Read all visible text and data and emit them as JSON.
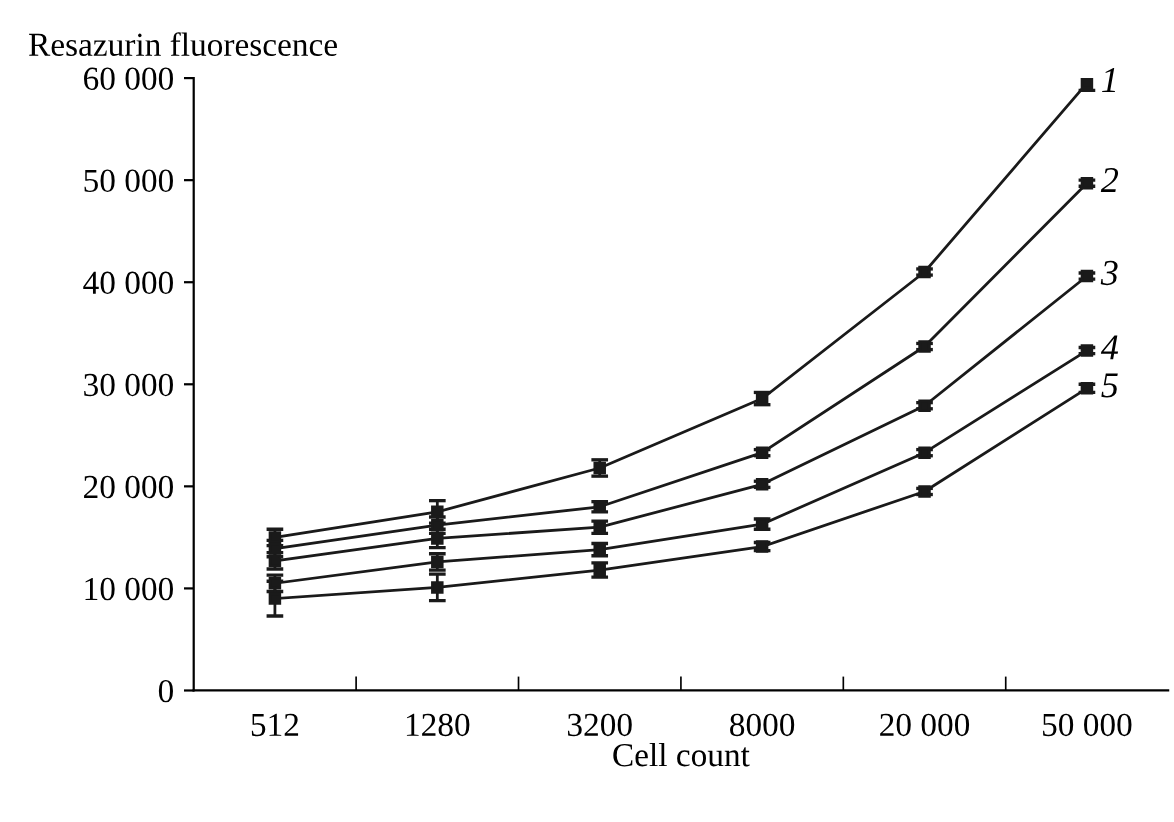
{
  "chart_data": {
    "type": "line",
    "xlabel": "Cell count",
    "ylabel": "Resazurin fluorescence",
    "categories": [
      "512",
      "1280",
      "3200",
      "8000",
      "20 000",
      "50 000"
    ],
    "ylim": [
      0,
      60000
    ],
    "yticks": [
      0,
      {
        "value": 10000,
        "label": "10 000"
      },
      {
        "value": 20000,
        "label": "20 000"
      },
      {
        "value": 30000,
        "label": "30 000"
      },
      {
        "value": 40000,
        "label": "40 000"
      },
      {
        "value": 50000,
        "label": "50 000"
      },
      {
        "value": 60000,
        "label": "60 000"
      }
    ],
    "marker": "square",
    "line_style": "solid",
    "grid": false,
    "legend": false,
    "series": [
      {
        "name": "1",
        "color": "#1a1a1a",
        "values": [
          15000,
          17500,
          21800,
          28600,
          41000,
          59500
        ],
        "errors": [
          800,
          1100,
          800,
          600,
          300,
          700
        ]
      },
      {
        "name": "2",
        "color": "#1a1a1a",
        "values": [
          13900,
          16200,
          18000,
          23300,
          33700,
          49700
        ],
        "errors": [
          800,
          800,
          500,
          300,
          300,
          300
        ]
      },
      {
        "name": "3",
        "color": "#1a1a1a",
        "values": [
          12700,
          14900,
          16000,
          20200,
          27900,
          40600
        ],
        "errors": [
          800,
          900,
          600,
          300,
          300,
          300
        ]
      },
      {
        "name": "4",
        "color": "#1a1a1a",
        "values": [
          10500,
          12600,
          13800,
          16300,
          23300,
          33300
        ],
        "errors": [
          800,
          800,
          600,
          500,
          300,
          300
        ]
      },
      {
        "name": "5",
        "color": "#1a1a1a",
        "values": [
          9000,
          10100,
          11800,
          14100,
          19500,
          29600
        ],
        "errors": [
          1700,
          1300,
          700,
          400,
          300,
          400
        ]
      }
    ]
  }
}
